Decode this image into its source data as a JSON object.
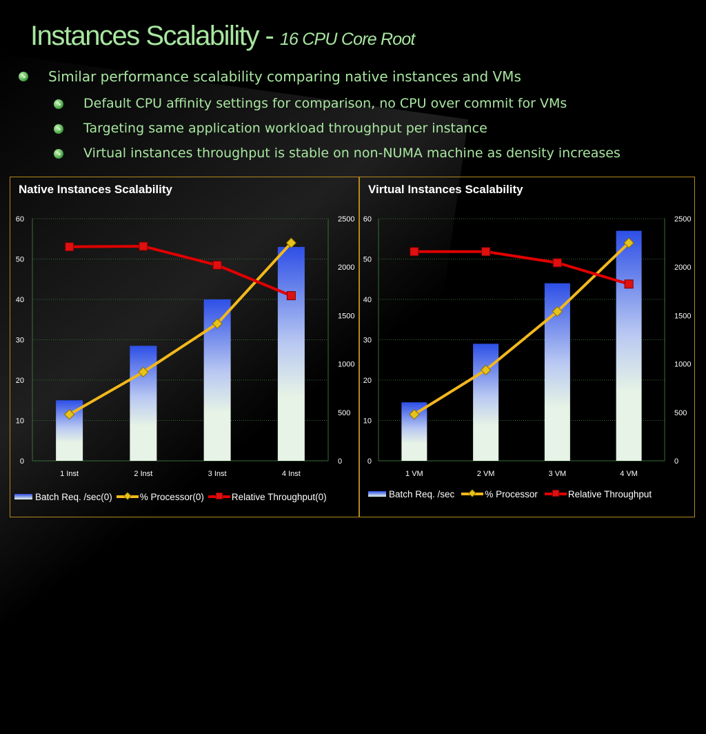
{
  "slide": {
    "title_main": "Instances Scalability - ",
    "title_sub": "16 CPU Core Root",
    "bullets": [
      {
        "level": 1,
        "text": "Similar performance scalability comparing native instances and VMs"
      },
      {
        "level": 2,
        "text": "Default CPU affinity settings for comparison, no CPU over commit for VMs"
      },
      {
        "level": 2,
        "text": "Targeting same application workload throughput per instance"
      },
      {
        "level": 2,
        "text": "Virtual instances throughput is stable on non-NUMA machine as density increases"
      }
    ]
  },
  "colors": {
    "title": "#a8e6a0",
    "panel_border": "#b5891f",
    "bar_top": "#2d4fe6",
    "bar_bottom": "#e6f3e6",
    "processor_line": "#f2b81c",
    "throughput_line": "#e00000",
    "gridline": "#3a6e3a"
  },
  "chart_data": [
    {
      "type": "bar",
      "title": "Native Instances Scalability",
      "categories": [
        "1 Inst",
        "2 Inst",
        "3 Inst",
        "4 Inst"
      ],
      "y_left": {
        "min": 0,
        "max": 60,
        "ticks": [
          "0",
          "10",
          "20",
          "30",
          "40",
          "50",
          "60"
        ]
      },
      "y_right": {
        "min": 0,
        "max": 2500,
        "ticks": [
          "0",
          "500",
          "1000",
          "1500",
          "2000",
          "2500"
        ]
      },
      "grid": true,
      "series": [
        {
          "name": "Batch Req. /sec(0)",
          "kind": "bar",
          "axis": "left",
          "values": [
            15,
            28.5,
            40,
            53
          ]
        },
        {
          "name": "% Processor(0)",
          "kind": "line",
          "marker": "diamond",
          "axis": "left",
          "values": [
            11.5,
            22,
            34,
            54
          ]
        },
        {
          "name": "Relative Throughput(0)",
          "kind": "line",
          "marker": "square",
          "axis": "right",
          "values": [
            2210,
            2215,
            2020,
            1705
          ]
        }
      ],
      "legend": "bottom"
    },
    {
      "type": "bar",
      "title": "Virtual Instances Scalability",
      "categories": [
        "1 VM",
        "2 VM",
        "3 VM",
        "4 VM"
      ],
      "y_left": {
        "min": 0,
        "max": 60,
        "ticks": [
          "0",
          "10",
          "20",
          "30",
          "40",
          "50",
          "60"
        ]
      },
      "y_right": {
        "min": 0,
        "max": 2500,
        "ticks": [
          "0",
          "500",
          "1000",
          "1500",
          "2000",
          "2500"
        ]
      },
      "grid": true,
      "series": [
        {
          "name": "Batch Req. /sec",
          "kind": "bar",
          "axis": "left",
          "values": [
            14.5,
            29,
            44,
            57
          ]
        },
        {
          "name": "% Processor",
          "kind": "line",
          "marker": "diamond",
          "axis": "left",
          "values": [
            11.5,
            22.5,
            37,
            54
          ]
        },
        {
          "name": "Relative Throughput",
          "kind": "line",
          "marker": "square",
          "axis": "right",
          "values": [
            2160,
            2160,
            2045,
            1825
          ]
        }
      ],
      "legend": "bottom"
    }
  ]
}
